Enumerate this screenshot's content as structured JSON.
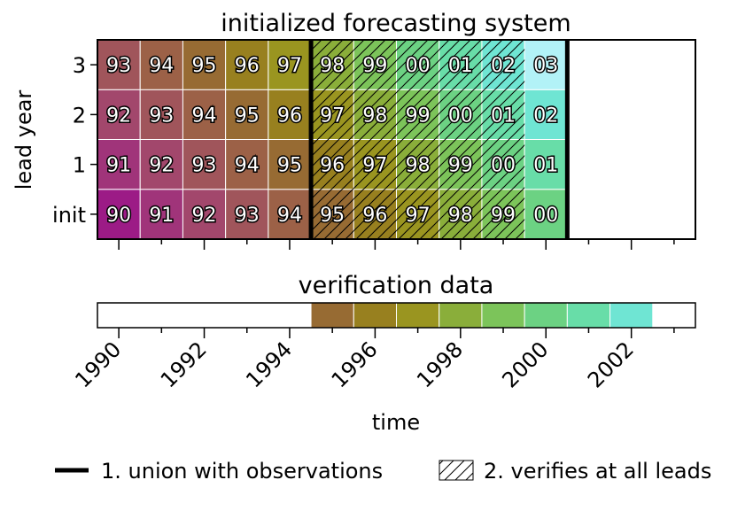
{
  "chart_data": {
    "type": "heatmap",
    "title": "initialized forecasting system",
    "ylabel": "lead year",
    "xlabel": "time",
    "xlim": [
      1989.5,
      2003.5
    ],
    "x_ticks": [
      1990,
      1992,
      1994,
      1996,
      1998,
      2000,
      2002
    ],
    "x_tick_labels": [
      "1990",
      "1992",
      "1994",
      "1996",
      "1998",
      "2000",
      "2002"
    ],
    "lead_labels": [
      "init",
      "1",
      "2",
      "3"
    ],
    "init_years": [
      1990,
      1991,
      1992,
      1993,
      1994,
      1995,
      1996,
      1997,
      1998,
      1999,
      2000
    ],
    "rows": [
      {
        "lead": "init",
        "cells": [
          "90",
          "91",
          "92",
          "93",
          "94",
          "95",
          "96",
          "97",
          "98",
          "99",
          "00"
        ]
      },
      {
        "lead": "1",
        "cells": [
          "91",
          "92",
          "93",
          "94",
          "95",
          "96",
          "97",
          "98",
          "99",
          "00",
          "01"
        ]
      },
      {
        "lead": "2",
        "cells": [
          "92",
          "93",
          "94",
          "95",
          "96",
          "97",
          "98",
          "99",
          "00",
          "01",
          "02"
        ]
      },
      {
        "lead": "3",
        "cells": [
          "93",
          "94",
          "95",
          "96",
          "97",
          "98",
          "99",
          "00",
          "01",
          "02",
          "03"
        ]
      }
    ],
    "union_with_observations": [
      1994.5,
      2000.5
    ],
    "verifies_at_all_leads": [
      1995,
      1996,
      1997,
      1998,
      1999
    ],
    "verification": {
      "title": "verification data",
      "years": [
        1995,
        1996,
        1997,
        1998,
        1999,
        2000,
        2001,
        2002
      ]
    },
    "legend": [
      {
        "marker": "line",
        "label": "1. union with observations"
      },
      {
        "marker": "hatch",
        "label": "2. verifies at all leads"
      }
    ],
    "colors": {
      "1990": "#9c1b86",
      "1991": "#a0347a",
      "1992": "#a2476c",
      "1993": "#a0555b",
      "1994": "#9c6147",
      "1995": "#976b33",
      "1996": "#98801f",
      "1997": "#9a9520",
      "1998": "#8aae3a",
      "1999": "#7cc45a",
      "2000": "#6cd283",
      "2001": "#68dda8",
      "2002": "#6fe5d3",
      "2003": "#b2f2f7"
    }
  }
}
